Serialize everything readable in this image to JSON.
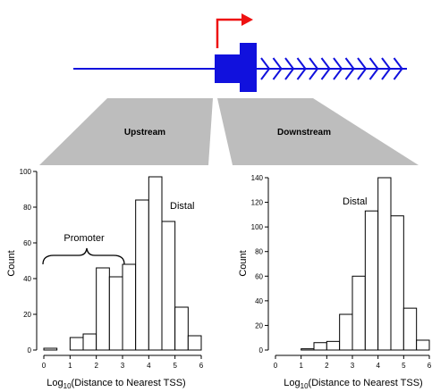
{
  "colors": {
    "gene": "#1111dd",
    "tss_arrow": "#ee1111",
    "region": "#bdbdbd",
    "bar_fill": "#ffffff",
    "bar_stroke": "#000000"
  },
  "diagram": {
    "upstream_label": "Upstream",
    "downstream_label": "Downstream"
  },
  "chart_data": [
    {
      "type": "bar",
      "panel": "upstream",
      "x": [
        0,
        0.5,
        1,
        1.5,
        2,
        2.5,
        3,
        3.5,
        4,
        4.5,
        5,
        5.5
      ],
      "bin_width": 0.5,
      "values": [
        1,
        0,
        7,
        9,
        46,
        41,
        48,
        84,
        97,
        72,
        24,
        8
      ],
      "xlabel_prefix": "Log",
      "xlabel_sub": "10",
      "xlabel_suffix": "(Distance to Nearest TSS)",
      "ylabel": "Count",
      "xlim": [
        0,
        6
      ],
      "ylim": [
        0,
        100
      ],
      "xticks": [
        0,
        1,
        2,
        3,
        4,
        5,
        6
      ],
      "yticks": [
        0,
        20,
        40,
        60,
        80,
        100
      ],
      "annotations": [
        {
          "text": "Promoter",
          "type": "brace",
          "x_range": [
            0,
            3
          ]
        },
        {
          "text": "Distal"
        }
      ]
    },
    {
      "type": "bar",
      "panel": "downstream",
      "x": [
        0,
        0.5,
        1,
        1.5,
        2,
        2.5,
        3,
        3.5,
        4,
        4.5,
        5,
        5.5
      ],
      "bin_width": 0.5,
      "values": [
        0,
        0,
        1,
        6,
        7,
        29,
        60,
        113,
        140,
        109,
        34,
        8
      ],
      "xlabel_prefix": "Log",
      "xlabel_sub": "10",
      "xlabel_suffix": "(Distance to Nearest TSS)",
      "ylabel": "Count",
      "xlim": [
        0,
        6
      ],
      "ylim": [
        0,
        140
      ],
      "xticks": [
        0,
        1,
        2,
        3,
        4,
        5,
        6
      ],
      "yticks": [
        0,
        20,
        40,
        60,
        80,
        100,
        120,
        140
      ],
      "annotations": [
        {
          "text": "Distal"
        }
      ]
    }
  ]
}
